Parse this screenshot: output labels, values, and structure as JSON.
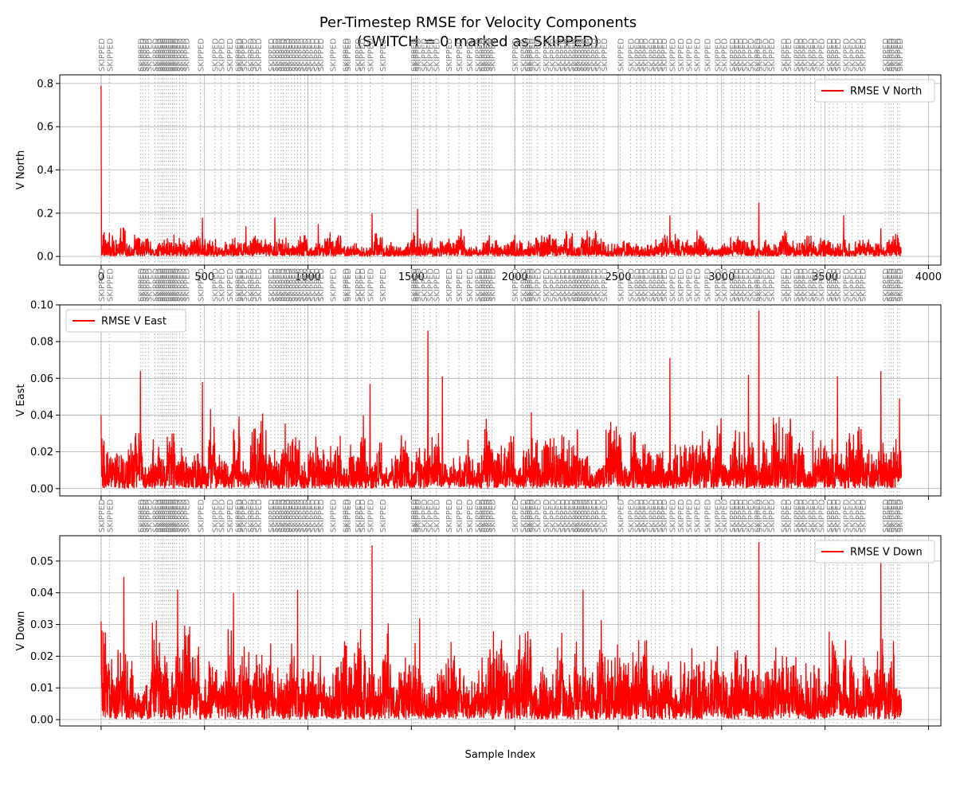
{
  "title_line1": "Per-Timestep RMSE for Velocity Components",
  "title_line2": "(SWITCH = 0 marked as SKIPPED)",
  "xlabel": "Sample Index",
  "skip_label": "SKIPPED",
  "colors": {
    "series": "#ff0000",
    "skip_line": "#9a9a9a",
    "skip_text": "#808080",
    "grid": "#b0b0b0"
  },
  "chart_data": [
    {
      "type": "line",
      "ylabel": "V North",
      "legend": "RMSE V North",
      "legend_position": "upper right",
      "xlim": [
        -200,
        4060
      ],
      "ylim": [
        -0.04,
        0.84
      ],
      "xticks": [
        0,
        500,
        1000,
        1500,
        2000,
        2500,
        3000,
        3500,
        4000
      ],
      "xtick_labels": [
        "0",
        "500",
        "1000",
        "1500",
        "2000",
        "2500",
        "3000",
        "3500",
        "4000"
      ],
      "yticks": [
        0.0,
        0.2,
        0.4,
        0.6,
        0.8
      ],
      "ytick_labels": [
        "0.0",
        "0.2",
        "0.4",
        "0.6",
        "0.8"
      ],
      "grid": true,
      "series": [
        {
          "name": "RMSE V North",
          "n_samples": 3870,
          "baseline": 0.04,
          "spikes": [
            [
              0,
              0.79
            ],
            [
              10,
              0.1
            ],
            [
              40,
              0.11
            ],
            [
              110,
              0.13
            ],
            [
              490,
              0.18
            ],
            [
              700,
              0.14
            ],
            [
              840,
              0.18
            ],
            [
              1050,
              0.15
            ],
            [
              1310,
              0.2
            ],
            [
              1530,
              0.22
            ],
            [
              1740,
              0.12
            ],
            [
              2000,
              0.1
            ],
            [
              2350,
              0.12
            ],
            [
              2750,
              0.19
            ],
            [
              3180,
              0.25
            ],
            [
              3590,
              0.19
            ],
            [
              3770,
              0.13
            ],
            [
              3850,
              0.1
            ]
          ]
        }
      ]
    },
    {
      "type": "line",
      "ylabel": "V East",
      "legend": "RMSE V East",
      "legend_position": "upper left",
      "xlim": [
        -200,
        4060
      ],
      "ylim": [
        -0.004,
        0.1
      ],
      "xticks": [
        0,
        500,
        1000,
        1500,
        2000,
        2500,
        3000,
        3500,
        4000
      ],
      "yticks": [
        0.0,
        0.02,
        0.04,
        0.06,
        0.08,
        0.1
      ],
      "ytick_labels": [
        "0.00",
        "0.02",
        "0.04",
        "0.06",
        "0.08",
        "0.10"
      ],
      "grid": true,
      "series": [
        {
          "name": "RMSE V East",
          "n_samples": 3870,
          "baseline": 0.012,
          "spikes": [
            [
              0,
              0.04
            ],
            [
              190,
              0.064
            ],
            [
              490,
              0.058
            ],
            [
              1300,
              0.057
            ],
            [
              1580,
              0.086
            ],
            [
              1650,
              0.061
            ],
            [
              2750,
              0.071
            ],
            [
              3130,
              0.062
            ],
            [
              3180,
              0.097
            ],
            [
              3560,
              0.061
            ],
            [
              3770,
              0.064
            ],
            [
              3860,
              0.049
            ]
          ]
        }
      ]
    },
    {
      "type": "line",
      "ylabel": "V Down",
      "legend": "RMSE V Down",
      "legend_position": "upper right",
      "xlim": [
        -200,
        4060
      ],
      "ylim": [
        -0.002,
        0.058
      ],
      "xticks": [
        0,
        500,
        1000,
        1500,
        2000,
        2500,
        3000,
        3500,
        4000
      ],
      "yticks": [
        0.0,
        0.01,
        0.02,
        0.03,
        0.04,
        0.05
      ],
      "ytick_labels": [
        "0.00",
        "0.01",
        "0.02",
        "0.03",
        "0.04",
        "0.05"
      ],
      "grid": true,
      "series": [
        {
          "name": "RMSE V Down",
          "n_samples": 3870,
          "baseline": 0.01,
          "spikes": [
            [
              0,
              0.031
            ],
            [
              110,
              0.045
            ],
            [
              370,
              0.041
            ],
            [
              640,
              0.04
            ],
            [
              950,
              0.041
            ],
            [
              1310,
              0.055
            ],
            [
              1540,
              0.032
            ],
            [
              2330,
              0.041
            ],
            [
              3180,
              0.056
            ],
            [
              3770,
              0.05
            ]
          ]
        }
      ]
    }
  ],
  "skipped_indices": [
    0,
    40,
    190,
    200,
    215,
    230,
    260,
    275,
    285,
    295,
    305,
    315,
    325,
    335,
    345,
    355,
    365,
    380,
    395,
    410,
    480,
    550,
    580,
    620,
    660,
    670,
    690,
    720,
    735,
    760,
    820,
    840,
    855,
    870,
    880,
    895,
    905,
    920,
    935,
    950,
    965,
    985,
    1000,
    1020,
    1040,
    1060,
    1120,
    1180,
    1190,
    1240,
    1260,
    1300,
    1360,
    1510,
    1520,
    1530,
    1560,
    1590,
    1620,
    1680,
    1730,
    1780,
    1820,
    1840,
    1850,
    1860,
    1875,
    1890,
    2000,
    2040,
    2060,
    2070,
    2080,
    2110,
    2150,
    2180,
    2210,
    2230,
    2250,
    2270,
    2290,
    2300,
    2315,
    2330,
    2345,
    2360,
    2380,
    2400,
    2430,
    2510,
    2560,
    2590,
    2610,
    2630,
    2660,
    2680,
    2700,
    2720,
    2760,
    2800,
    2840,
    2880,
    2930,
    2980,
    3010,
    3050,
    3070,
    3090,
    3110,
    3140,
    3170,
    3180,
    3210,
    3240,
    3300,
    3320,
    3360,
    3380,
    3400,
    3430,
    3450,
    3480,
    3520,
    3540,
    3560,
    3600,
    3630,
    3660,
    3680,
    3790,
    3810,
    3820,
    3830,
    3850,
    3860
  ]
}
